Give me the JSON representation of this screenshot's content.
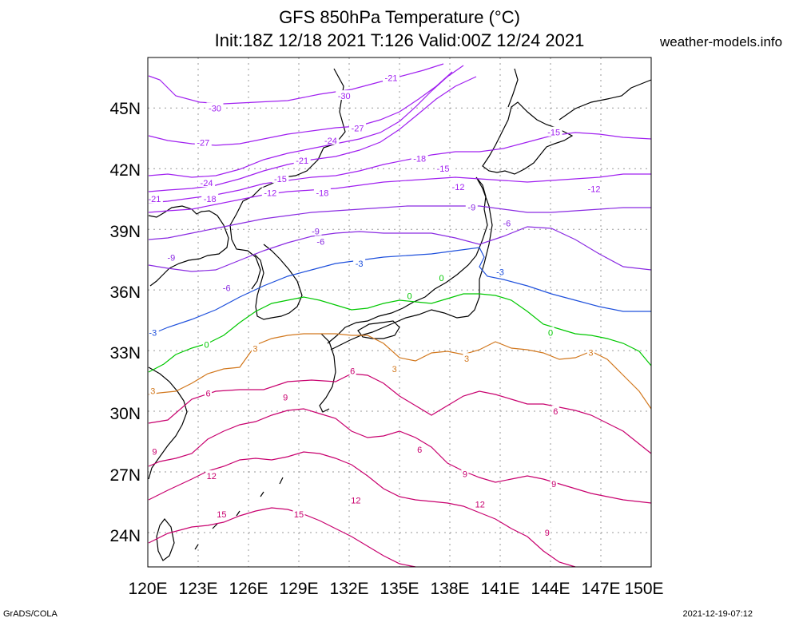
{
  "title_line1": "GFS 850hPa Temperature (°C)",
  "title_line2": "Init:18Z 12/18 2021 T:126 Valid:00Z 12/24 2021",
  "site": "weather-models.info",
  "footer_left": "GrADS/COLA",
  "footer_right": "2021-12-19-07:12",
  "lat_labels": [
    "45N",
    "42N",
    "39N",
    "36N",
    "33N",
    "30N",
    "27N",
    "24N"
  ],
  "lon_labels": [
    "120E",
    "123E",
    "126E",
    "129E",
    "132E",
    "135E",
    "138E",
    "141E",
    "144E",
    "147E",
    "150E"
  ],
  "contour_colors": {
    "-30": "#a020f0",
    "-27": "#a020f0",
    "-24": "#a020f0",
    "-21": "#a020f0",
    "-18": "#a020f0",
    "-15": "#a020f0",
    "-12": "#a020f0",
    "-9": "#8a2be2",
    "-6": "#8a2be2",
    "-3": "#1e50dc",
    "0": "#00c800",
    "3": "#d2781e",
    "6": "#c8006e",
    "9": "#c8006e",
    "12": "#c8006e",
    "15": "#c8006e"
  },
  "contour_labels": [
    {
      "text": "-30",
      "lon": 124.0,
      "lat": 45.0
    },
    {
      "text": "-30",
      "lon": 131.7,
      "lat": 45.6
    },
    {
      "text": "-21",
      "lon": 134.5,
      "lat": 46.5
    },
    {
      "text": "-27",
      "lon": 123.3,
      "lat": 43.3
    },
    {
      "text": "-27",
      "lon": 132.5,
      "lat": 44.0
    },
    {
      "text": "-24",
      "lon": 130.9,
      "lat": 43.4
    },
    {
      "text": "-21",
      "lon": 129.2,
      "lat": 42.4
    },
    {
      "text": "-18",
      "lon": 136.2,
      "lat": 42.5
    },
    {
      "text": "-15",
      "lon": 137.6,
      "lat": 42.0
    },
    {
      "text": "-24",
      "lon": 123.5,
      "lat": 41.3
    },
    {
      "text": "-15",
      "lon": 127.9,
      "lat": 41.5
    },
    {
      "text": "-12",
      "lon": 127.3,
      "lat": 40.8
    },
    {
      "text": "-18",
      "lon": 130.4,
      "lat": 40.8
    },
    {
      "text": "-18",
      "lon": 123.7,
      "lat": 40.5
    },
    {
      "text": "-21",
      "lon": 120.4,
      "lat": 40.5
    },
    {
      "text": "-12",
      "lon": 138.5,
      "lat": 41.1
    },
    {
      "text": "-12",
      "lon": 146.6,
      "lat": 41.0
    },
    {
      "text": "-15",
      "lon": 144.2,
      "lat": 43.8
    },
    {
      "text": "-9",
      "lon": 139.3,
      "lat": 40.1
    },
    {
      "text": "-9",
      "lon": 130.0,
      "lat": 38.9
    },
    {
      "text": "-6",
      "lon": 130.3,
      "lat": 38.4
    },
    {
      "text": "-6",
      "lon": 141.4,
      "lat": 39.3
    },
    {
      "text": "-9",
      "lon": 121.4,
      "lat": 37.6
    },
    {
      "text": "-6",
      "lon": 124.7,
      "lat": 36.1
    },
    {
      "text": "-3",
      "lon": 132.6,
      "lat": 37.3
    },
    {
      "text": "-3",
      "lon": 141.0,
      "lat": 36.9
    },
    {
      "text": "-3",
      "lon": 120.3,
      "lat": 33.9
    },
    {
      "text": "0",
      "lon": 137.5,
      "lat": 36.6
    },
    {
      "text": "0",
      "lon": 135.6,
      "lat": 35.7
    },
    {
      "text": "0",
      "lon": 123.5,
      "lat": 33.3
    },
    {
      "text": "0",
      "lon": 144.0,
      "lat": 33.9
    },
    {
      "text": "3",
      "lon": 126.4,
      "lat": 33.1
    },
    {
      "text": "3",
      "lon": 120.3,
      "lat": 31.0
    },
    {
      "text": "3",
      "lon": 134.7,
      "lat": 32.1
    },
    {
      "text": "3",
      "lon": 139.0,
      "lat": 32.6
    },
    {
      "text": "3",
      "lon": 146.4,
      "lat": 32.9
    },
    {
      "text": "6",
      "lon": 132.2,
      "lat": 32.0
    },
    {
      "text": "6",
      "lon": 123.6,
      "lat": 30.9
    },
    {
      "text": "6",
      "lon": 144.3,
      "lat": 30.0
    },
    {
      "text": "6",
      "lon": 136.2,
      "lat": 28.1
    },
    {
      "text": "9",
      "lon": 128.2,
      "lat": 30.7
    },
    {
      "text": "9",
      "lon": 120.4,
      "lat": 28.0
    },
    {
      "text": "9",
      "lon": 138.9,
      "lat": 26.9
    },
    {
      "text": "9",
      "lon": 144.2,
      "lat": 26.4
    },
    {
      "text": "9",
      "lon": 143.8,
      "lat": 24.0
    },
    {
      "text": "12",
      "lon": 123.8,
      "lat": 26.8
    },
    {
      "text": "12",
      "lon": 132.4,
      "lat": 25.6
    },
    {
      "text": "12",
      "lon": 139.8,
      "lat": 25.4
    },
    {
      "text": "15",
      "lon": 124.4,
      "lat": 24.9
    },
    {
      "text": "15",
      "lon": 129.0,
      "lat": 24.9
    }
  ]
}
